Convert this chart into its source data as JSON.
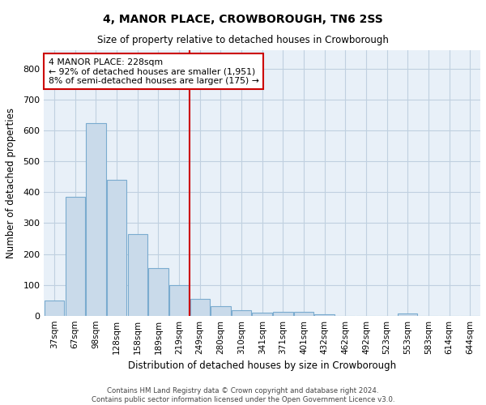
{
  "title": "4, MANOR PLACE, CROWBOROUGH, TN6 2SS",
  "subtitle": "Size of property relative to detached houses in Crowborough",
  "xlabel": "Distribution of detached houses by size in Crowborough",
  "ylabel": "Number of detached properties",
  "footer_line1": "Contains HM Land Registry data © Crown copyright and database right 2024.",
  "footer_line2": "Contains public sector information licensed under the Open Government Licence v3.0.",
  "bar_labels": [
    "37sqm",
    "67sqm",
    "98sqm",
    "128sqm",
    "158sqm",
    "189sqm",
    "219sqm",
    "249sqm",
    "280sqm",
    "310sqm",
    "341sqm",
    "371sqm",
    "401sqm",
    "432sqm",
    "462sqm",
    "492sqm",
    "523sqm",
    "553sqm",
    "583sqm",
    "614sqm",
    "644sqm"
  ],
  "bar_values": [
    50,
    385,
    625,
    440,
    265,
    155,
    100,
    55,
    30,
    18,
    10,
    12,
    12,
    5,
    0,
    0,
    0,
    8,
    0,
    0,
    0
  ],
  "bar_color": "#c9daea",
  "bar_edge_color": "#7aabcf",
  "grid_color": "#c0d0e0",
  "bg_color": "#e8f0f8",
  "vline_color": "#cc0000",
  "annotation_line1": "4 MANOR PLACE: 228sqm",
  "annotation_line2": "← 92% of detached houses are smaller (1,951)",
  "annotation_line3": "8% of semi-detached houses are larger (175) →",
  "annotation_box_color": "#cc0000",
  "ylim": [
    0,
    860
  ],
  "yticks": [
    0,
    100,
    200,
    300,
    400,
    500,
    600,
    700,
    800
  ]
}
